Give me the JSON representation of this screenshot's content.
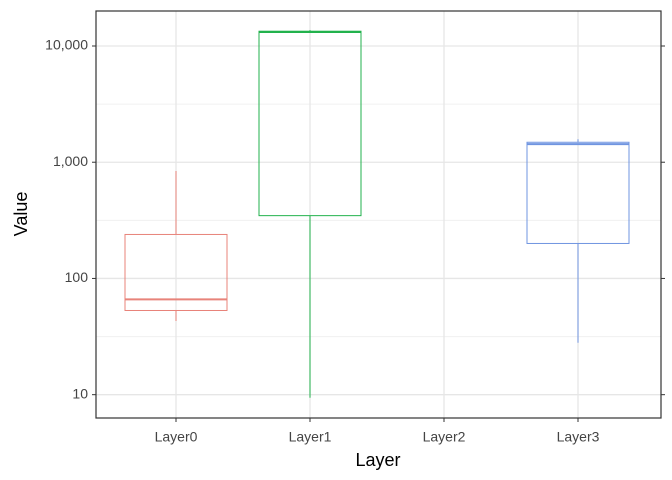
{
  "chart_data": {
    "type": "box",
    "x_label": "Layer",
    "y_label": "Value",
    "categories": [
      "Layer0",
      "Layer1",
      "Layer2",
      "Layer3"
    ],
    "colors": [
      "#e8837a",
      "#22b24c",
      "#00bfc4",
      "#6f94e0"
    ],
    "boxes": [
      {
        "min": 43,
        "q1": 53,
        "median": 66,
        "q3": 239,
        "max": 840
      },
      {
        "min": 9.4,
        "q1": 347,
        "median": 13200,
        "q3": 13400,
        "max": 13700
      },
      null,
      {
        "min": 28,
        "q1": 200,
        "median": 1430,
        "q3": 1485,
        "max": 1575
      }
    ],
    "log_y": true,
    "ylim": [
      6.3,
      20000
    ],
    "yticks": [
      10,
      100,
      {
        "value": 1000,
        "label": "1,000"
      },
      {
        "value": 10000,
        "label": "10,000"
      }
    ],
    "minor_yticks": [
      31.62,
      316.2,
      3162
    ],
    "grid": true
  }
}
